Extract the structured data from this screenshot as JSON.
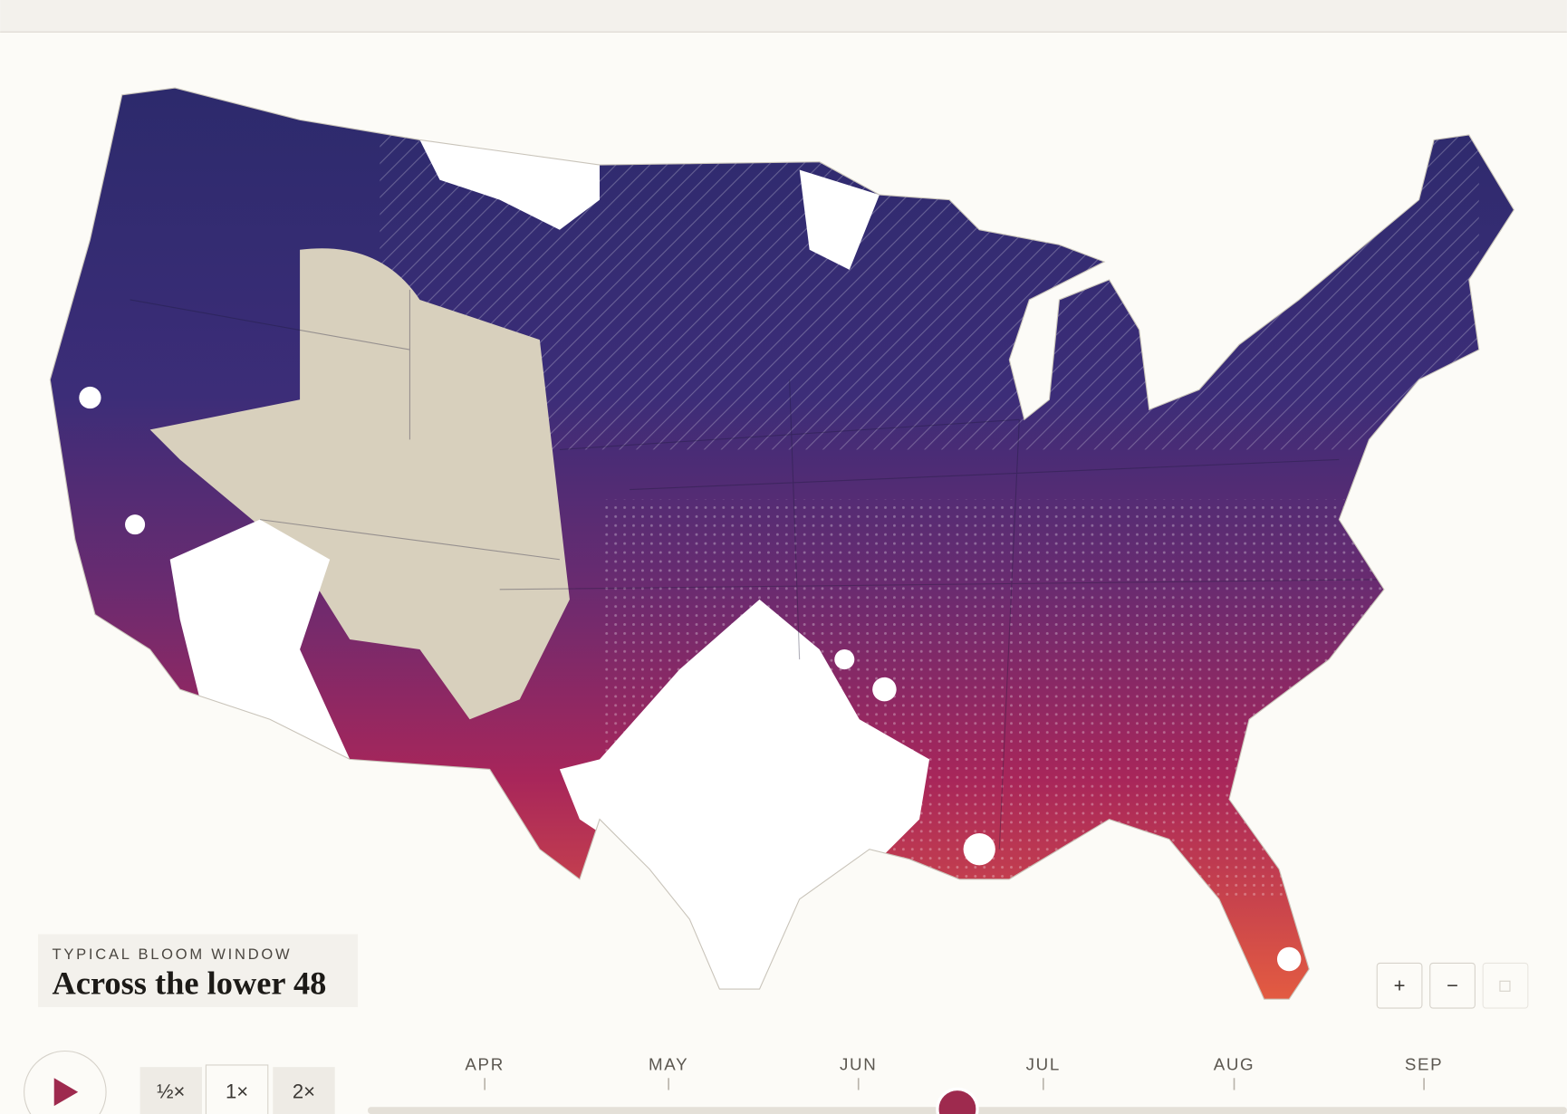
{
  "legend": {
    "eyebrow": "TYPICAL BLOOM WINDOW",
    "title": "Across the lower 48"
  },
  "playback": {
    "speeds": [
      "½×",
      "1×",
      "2×"
    ]
  },
  "zoom": {
    "buttons": [
      "+",
      "−"
    ]
  },
  "timeline": {
    "months": [
      "APR",
      "MAY",
      "JUN",
      "JUL",
      "AUG",
      "SEP"
    ]
  }
}
